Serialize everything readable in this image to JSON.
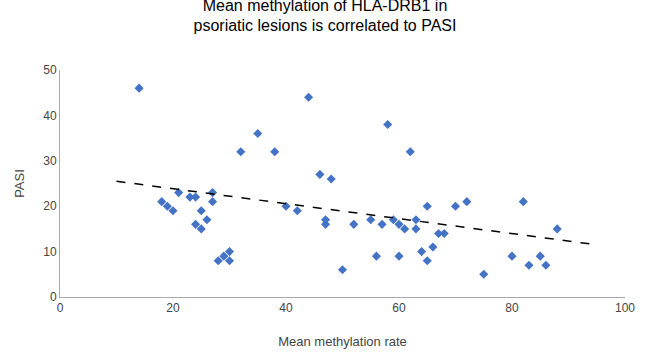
{
  "chart_data": {
    "type": "scatter",
    "title": "Mean methylation of HLA-DRB1 in\npsoriatic lesions is correlated to PASI",
    "x_label": "Mean methylation rate",
    "y_label": "PASI",
    "x": [
      14,
      18,
      19,
      20,
      21,
      23,
      24,
      24,
      25,
      25,
      26,
      27,
      27,
      28,
      29,
      30,
      30,
      32,
      35,
      38,
      40,
      42,
      44,
      46,
      47,
      47,
      48,
      50,
      52,
      55,
      56,
      57,
      58,
      59,
      60,
      60,
      61,
      62,
      63,
      63,
      64,
      65,
      65,
      66,
      67,
      68,
      70,
      72,
      75,
      80,
      82,
      83,
      85,
      86,
      88
    ],
    "values": [
      46,
      21,
      20,
      19,
      23,
      22,
      16,
      22,
      19,
      15,
      17,
      23,
      21,
      8,
      9,
      10,
      8,
      32,
      36,
      32,
      20,
      19,
      44,
      27,
      16,
      17,
      26,
      6,
      16,
      17,
      9,
      16,
      38,
      17,
      16,
      9,
      15,
      32,
      15,
      17,
      10,
      8,
      20,
      11,
      14,
      14,
      20,
      21,
      5,
      9,
      21,
      7,
      9,
      7,
      15
    ],
    "color": "#4472C4",
    "marker": "diamond",
    "trendline": {
      "x": [
        10,
        95
      ],
      "values": [
        25.5,
        11.5
      ],
      "color": "#000000",
      "line_style": "dashed"
    },
    "xlim": [
      0,
      100
    ],
    "ylim": [
      0,
      50
    ],
    "xticks": [
      0,
      20,
      40,
      60,
      80,
      100
    ],
    "yticks": [
      0,
      10,
      20,
      30,
      40,
      50
    ],
    "grid": false
  }
}
